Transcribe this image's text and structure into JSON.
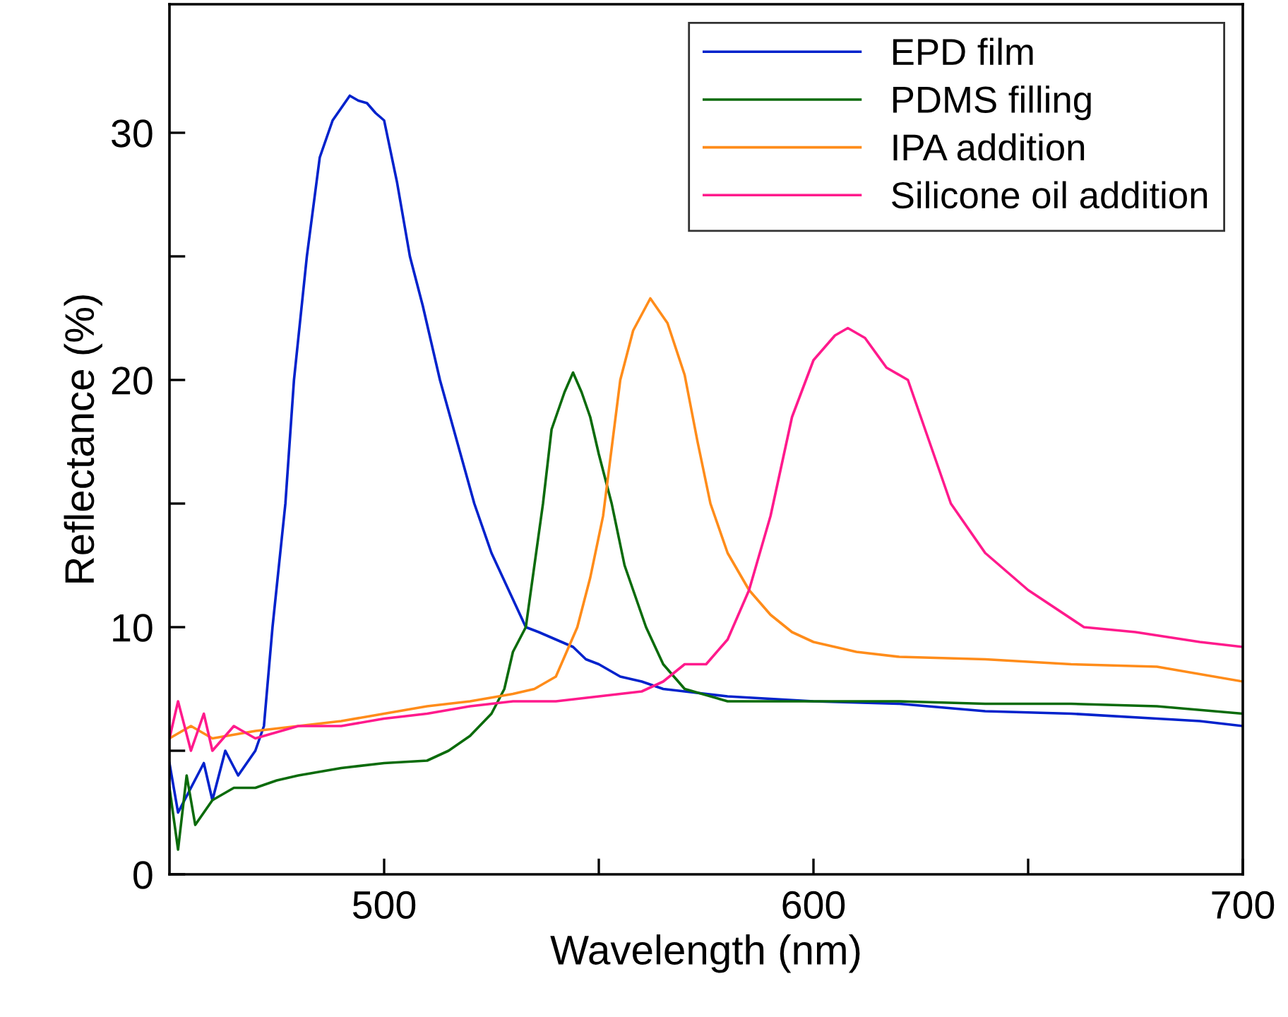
{
  "chart_data": {
    "type": "line",
    "xlabel": "Wavelength (nm)",
    "ylabel": "Reflectance (%)",
    "xlim": [
      450,
      700
    ],
    "ylim": [
      0,
      35.2
    ],
    "xticks": [
      500,
      {
        "value": 550,
        "label": null
      },
      600,
      {
        "value": 650,
        "label": null
      },
      700
    ],
    "yticks": [
      0,
      {
        "value": 5,
        "label": null
      },
      10,
      {
        "value": 15,
        "label": null
      },
      20,
      {
        "value": 25,
        "label": null
      },
      30
    ],
    "grid": false,
    "legend": "top right",
    "marker": "none",
    "line_style": "solid",
    "series": [
      {
        "name": "EPD film",
        "color": "#0022cc",
        "x": [
          450,
          452,
          455,
          458,
          460,
          463,
          466,
          470,
          472,
          474,
          477,
          479,
          482,
          485,
          488,
          490,
          492,
          494,
          496,
          498,
          500,
          503,
          506,
          509,
          513,
          517,
          521,
          525,
          529,
          533,
          536,
          540,
          544,
          547,
          550,
          555,
          560,
          565,
          570,
          580,
          590,
          600,
          620,
          640,
          660,
          680,
          690,
          700
        ],
        "values": [
          4.5,
          2.5,
          3.5,
          4.5,
          3,
          5,
          4,
          5,
          6,
          10,
          15,
          20,
          25,
          29,
          30.5,
          31,
          31.5,
          31.3,
          31.2,
          30.8,
          30.5,
          28,
          25,
          23,
          20,
          17.5,
          15,
          13,
          11.5,
          10,
          9.8,
          9.5,
          9.2,
          8.7,
          8.5,
          8,
          7.8,
          7.5,
          7.4,
          7.2,
          7.1,
          7,
          6.9,
          6.6,
          6.5,
          6.3,
          6.2,
          6
        ]
      },
      {
        "name": "PDMS filling",
        "color": "#0b6b0b",
        "x": [
          450,
          452,
          454,
          456,
          460,
          465,
          470,
          475,
          480,
          490,
          500,
          510,
          515,
          520,
          525,
          528,
          530,
          533,
          537,
          539,
          542,
          544,
          546,
          548,
          550,
          553,
          556,
          561,
          565,
          570,
          580,
          600,
          620,
          640,
          660,
          680,
          700
        ],
        "values": [
          3.5,
          1,
          4,
          2,
          3,
          3.5,
          3.5,
          3.8,
          4,
          4.3,
          4.5,
          4.6,
          5,
          5.6,
          6.5,
          7.5,
          9,
          10,
          15,
          18,
          19.5,
          20.3,
          19.5,
          18.5,
          17,
          15,
          12.5,
          10,
          8.5,
          7.5,
          7,
          7,
          7,
          6.9,
          6.9,
          6.8,
          6.5
        ]
      },
      {
        "name": "IPA addition",
        "color": "#ff8c1a",
        "x": [
          450,
          455,
          460,
          470,
          480,
          490,
          500,
          510,
          520,
          530,
          535,
          540,
          545,
          548,
          551,
          555,
          558,
          562,
          566,
          570,
          573,
          576,
          580,
          585,
          590,
          595,
          600,
          610,
          620,
          640,
          660,
          680,
          700
        ],
        "values": [
          5.5,
          6,
          5.5,
          5.8,
          6,
          6.2,
          6.5,
          6.8,
          7,
          7.3,
          7.5,
          8,
          10,
          12,
          14.5,
          20,
          22,
          23.3,
          22.3,
          20.2,
          17.5,
          15,
          13,
          11.5,
          10.5,
          9.8,
          9.4,
          9,
          8.8,
          8.7,
          8.5,
          8.4,
          7.8
        ]
      },
      {
        "name": "Silicone oil addition",
        "color": "#ff1a8c",
        "x": [
          450,
          452,
          455,
          458,
          460,
          465,
          470,
          480,
          490,
          500,
          510,
          520,
          530,
          540,
          550,
          560,
          565,
          570,
          575,
          580,
          585,
          590,
          595,
          600,
          605,
          608,
          612,
          617,
          622,
          627,
          632,
          640,
          650,
          663,
          675,
          690,
          700
        ],
        "values": [
          5.5,
          7,
          5,
          6.5,
          5,
          6,
          5.5,
          6,
          6,
          6.3,
          6.5,
          6.8,
          7,
          7,
          7.2,
          7.4,
          7.8,
          8.5,
          8.5,
          9.5,
          11.5,
          14.5,
          18.5,
          20.8,
          21.8,
          22.1,
          21.7,
          20.5,
          20,
          17.5,
          15,
          13,
          11.5,
          10,
          9.8,
          9.4,
          9.2
        ]
      }
    ]
  }
}
